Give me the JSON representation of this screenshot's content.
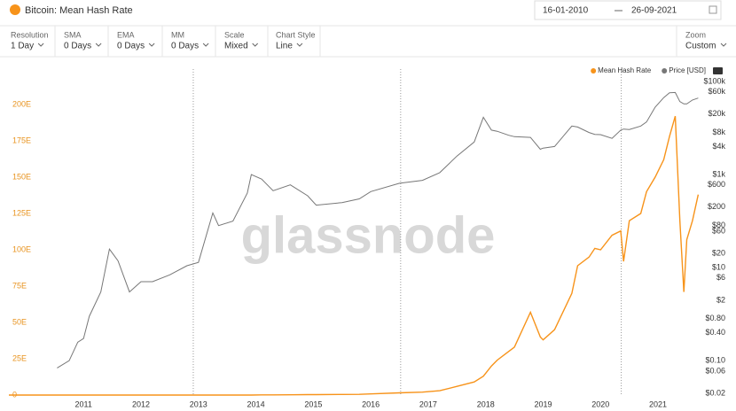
{
  "header": {
    "title": "Bitcoin: Mean Hash Rate",
    "date_from": "16-01-2010",
    "date_to": "26-09-2021"
  },
  "controls": [
    {
      "label": "Resolution",
      "value": "1 Day"
    },
    {
      "label": "SMA",
      "value": "0 Days"
    },
    {
      "label": "EMA",
      "value": "0 Days"
    },
    {
      "label": "MM",
      "value": "0 Days"
    },
    {
      "label": "Scale",
      "value": "Mixed"
    },
    {
      "label": "Chart Style",
      "value": "Line"
    }
  ],
  "zoom": {
    "label": "Zoom",
    "value": "Custom"
  },
  "chart_data": {
    "type": "line",
    "watermark": "glassnode",
    "x": [
      2009.7,
      2010.54,
      2010.75,
      2010.9,
      2011.0,
      2011.1,
      2011.3,
      2011.45,
      2011.6,
      2011.8,
      2012.0,
      2012.2,
      2012.5,
      2012.8,
      2013.0,
      2013.25,
      2013.35,
      2013.6,
      2013.85,
      2013.92,
      2014.1,
      2014.3,
      2014.6,
      2014.9,
      2015.05,
      2015.5,
      2015.8,
      2016.0,
      2016.5,
      2016.9,
      2017.2,
      2017.5,
      2017.8,
      2017.96,
      2018.1,
      2018.2,
      2018.4,
      2018.5,
      2018.78,
      2018.95,
      2019.0,
      2019.2,
      2019.5,
      2019.6,
      2019.8,
      2019.9,
      2020.0,
      2020.2,
      2020.35,
      2020.4,
      2020.5,
      2020.7,
      2020.8,
      2020.95,
      2021.1,
      2021.2,
      2021.3,
      2021.38,
      2021.45,
      2021.5,
      2021.6,
      2021.7
    ],
    "series": [
      {
        "name": "Mean Hash Rate",
        "color": "#f7931a",
        "axis": "y",
        "values": [
          0,
          0,
          0,
          0,
          0,
          0,
          0,
          0,
          0,
          0,
          0,
          0,
          0,
          0,
          0,
          0,
          0,
          0,
          0,
          0,
          0.1,
          0.1,
          0.2,
          0.3,
          0.3,
          0.4,
          0.5,
          0.8,
          1.5,
          2,
          3,
          6,
          9,
          13,
          20,
          24,
          30,
          33,
          57,
          40,
          38,
          45,
          70,
          89,
          95,
          101,
          100,
          110,
          113,
          92,
          120,
          125,
          140,
          150,
          162,
          178,
          192,
          120,
          71,
          107,
          120,
          138
        ]
      },
      {
        "name": "Price [USD]",
        "color": "#777777",
        "axis": "y2",
        "values": [
          null,
          0.07,
          0.1,
          0.25,
          0.3,
          0.9,
          3,
          25,
          14,
          3,
          5,
          5,
          7,
          11,
          13,
          150,
          80,
          100,
          400,
          1000,
          800,
          450,
          600,
          350,
          220,
          250,
          300,
          430,
          650,
          750,
          1100,
          2500,
          5000,
          17000,
          9000,
          8500,
          7000,
          6500,
          6300,
          3500,
          3700,
          4000,
          11000,
          10500,
          8000,
          7300,
          7200,
          6000,
          9000,
          9500,
          9300,
          11000,
          13500,
          28000,
          45000,
          57000,
          58000,
          37000,
          33000,
          33000,
          40000,
          44000
        ]
      }
    ],
    "xlim": [
      2009.7,
      2021.74
    ],
    "xticks": [
      2011,
      2012,
      2013,
      2014,
      2015,
      2016,
      2017,
      2018,
      2019,
      2020,
      2021
    ],
    "ylim": [
      0,
      218.3
    ],
    "yticks": [
      0,
      {
        "value": 25,
        "label": "25E"
      },
      {
        "value": 50,
        "label": "50E"
      },
      {
        "value": 75,
        "label": "75E"
      },
      {
        "value": 100,
        "label": "100E"
      },
      {
        "value": 125,
        "label": "125E"
      },
      {
        "value": 150,
        "label": "150E"
      },
      {
        "value": 175,
        "label": "175E"
      },
      {
        "value": 200,
        "label": "200E"
      }
    ],
    "y2scale": "log",
    "y2lim": [
      0.0183,
      119000
    ],
    "y2ticks": [
      {
        "value": 100000,
        "label": "$100k"
      },
      {
        "value": 60000,
        "label": "$60k"
      },
      {
        "value": 20000,
        "label": "$20k"
      },
      {
        "value": 8000,
        "label": "$8k"
      },
      {
        "value": 4000,
        "label": "$4k"
      },
      {
        "value": 1000,
        "label": "$1k"
      },
      {
        "value": 600,
        "label": "$600"
      },
      {
        "value": 200,
        "label": "$200"
      },
      {
        "value": 80,
        "label": "$80"
      },
      {
        "value": 60,
        "label": "$60"
      },
      {
        "value": 20,
        "label": "$20"
      },
      {
        "value": 10,
        "label": "$10"
      },
      {
        "value": 6,
        "label": "$6"
      },
      {
        "value": 2,
        "label": "$2"
      },
      {
        "value": 0.8,
        "label": "$0.80"
      },
      {
        "value": 0.4,
        "label": "$0.40"
      },
      {
        "value": 0.1,
        "label": "$0.10"
      },
      {
        "value": 0.06,
        "label": "$0.06"
      },
      {
        "value": 0.02,
        "label": "$0.02"
      }
    ],
    "halvings": [
      2012.91,
      2016.52,
      2020.36
    ],
    "grid": false,
    "legend": "top-right"
  }
}
